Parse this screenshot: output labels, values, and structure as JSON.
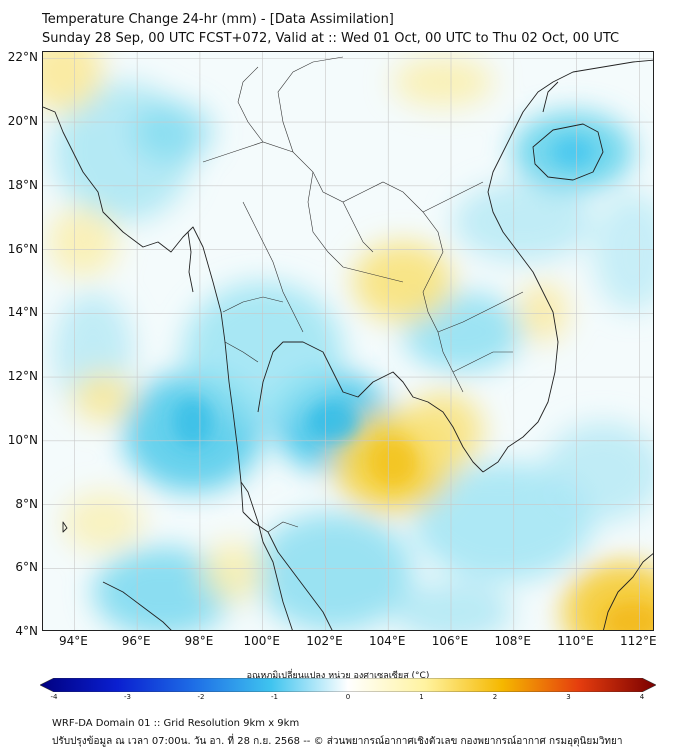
{
  "header": {
    "title": "Temperature Change 24-hr (mm) - [Data Assimilation]",
    "subtitle": "Sunday 28 Sep, 00 UTC FCST+072, Valid at :: Wed 01 Oct, 00 UTC to Thu 02 Oct, 00 UTC"
  },
  "axes": {
    "lat_labels": [
      "22°N",
      "20°N",
      "18°N",
      "16°N",
      "14°N",
      "12°N",
      "10°N",
      "8°N",
      "6°N",
      "4°N"
    ],
    "lon_labels": [
      "94°E",
      "96°E",
      "98°E",
      "100°E",
      "102°E",
      "104°E",
      "106°E",
      "108°E",
      "110°E",
      "112°E"
    ],
    "lat_range": [
      4,
      22.2
    ],
    "lon_range": [
      93,
      112.5
    ]
  },
  "colorbar": {
    "title": "อุณหภูมิเปลี่ยนแปลง หน่วย องศาเซลเซียส (°C)",
    "ticks": [
      "-4",
      "-3",
      "-2",
      "-1",
      "0",
      "1",
      "2",
      "3",
      "4"
    ],
    "range": [
      -4,
      4
    ],
    "colors": [
      "#000080",
      "#0a1fd0",
      "#1e6ee6",
      "#3fc4ef",
      "#ffffff",
      "#fff3a0",
      "#f5b800",
      "#e53d0e",
      "#7a0000"
    ]
  },
  "footer": {
    "line1": "WRF-DA Domain 01 :: Grid Resolution 9km x 9km",
    "line2": "ปรับปรุงข้อมูล ณ เวลา 07:00น. วัน อา. ที่ 28 ก.ย. 2568 -- © ส่วนพยากรณ์อากาศเชิงตัวเลข กองพยากรณ์อากาศ กรมอุตุนิยมวิทยา"
  },
  "map": {
    "ocean_color": "#f4fbfc",
    "coast_color": "#222222",
    "border_color": "#333333",
    "grid_color": "#c8c8c8"
  }
}
